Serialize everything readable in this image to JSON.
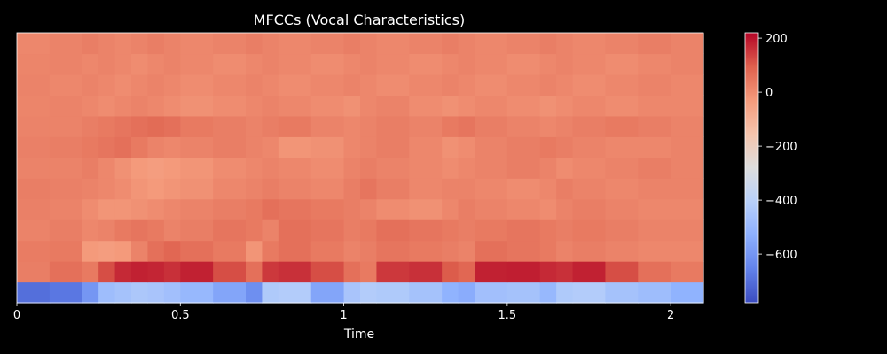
{
  "chart_data": {
    "type": "heatmap",
    "title": "MFCCs (Vocal Characteristics)",
    "xlabel": "Time",
    "ylabel": "",
    "xlim": [
      0,
      2.1
    ],
    "x_ticks": [
      {
        "value": 0,
        "label": "0"
      },
      {
        "value": 0.5,
        "label": "0.5"
      },
      {
        "value": 1,
        "label": "1"
      },
      {
        "value": 1.5,
        "label": "1.5"
      },
      {
        "value": 2,
        "label": "2"
      }
    ],
    "n_coefficients": 13,
    "colormap": "coolwarm",
    "colorbar": {
      "range": [
        -780,
        220
      ],
      "ticks": [
        {
          "value": 200,
          "label": "200"
        },
        {
          "value": 0,
          "label": "0"
        },
        {
          "value": -200,
          "label": "−200"
        },
        {
          "value": -400,
          "label": "−400"
        },
        {
          "value": -600,
          "label": "−600"
        }
      ]
    },
    "time_bins": [
      0.0,
      0.1,
      0.2,
      0.25,
      0.3,
      0.35,
      0.4,
      0.45,
      0.5,
      0.6,
      0.7,
      0.75,
      0.8,
      0.9,
      1.0,
      1.05,
      1.1,
      1.2,
      1.3,
      1.35,
      1.4,
      1.5,
      1.6,
      1.65,
      1.7,
      1.8,
      1.9,
      2.0,
      2.1
    ],
    "values": [
      [
        -700,
        -680,
        -600,
        -480,
        -460,
        -440,
        -450,
        -470,
        -500,
        -560,
        -620,
        -430,
        -420,
        -560,
        -450,
        -420,
        -430,
        -460,
        -520,
        -540,
        -470,
        -460,
        -500,
        -430,
        -420,
        -460,
        -480,
        -520
      ],
      [
        30,
        60,
        40,
        120,
        170,
        180,
        175,
        160,
        180,
        120,
        60,
        150,
        160,
        120,
        60,
        40,
        150,
        160,
        100,
        80,
        180,
        185,
        170,
        160,
        180,
        120,
        60,
        40
      ],
      [
        35,
        40,
        -30,
        -40,
        -30,
        20,
        60,
        80,
        60,
        40,
        -20,
        40,
        60,
        40,
        20,
        30,
        50,
        40,
        30,
        20,
        60,
        50,
        40,
        20,
        30,
        20,
        10,
        10
      ],
      [
        20,
        30,
        10,
        20,
        40,
        50,
        40,
        20,
        30,
        50,
        40,
        20,
        60,
        50,
        30,
        40,
        60,
        50,
        40,
        30,
        40,
        50,
        40,
        30,
        40,
        30,
        20,
        20
      ],
      [
        25,
        20,
        0,
        -20,
        -20,
        -10,
        0,
        10,
        20,
        30,
        40,
        60,
        50,
        40,
        30,
        20,
        0,
        -10,
        10,
        30,
        20,
        10,
        0,
        20,
        30,
        20,
        10,
        10
      ],
      [
        30,
        25,
        20,
        10,
        0,
        -20,
        -30,
        -20,
        -10,
        10,
        20,
        30,
        20,
        10,
        30,
        50,
        30,
        10,
        20,
        20,
        10,
        0,
        10,
        30,
        20,
        10,
        20,
        20
      ],
      [
        20,
        20,
        30,
        10,
        -10,
        -30,
        -40,
        -30,
        -20,
        0,
        10,
        20,
        10,
        0,
        20,
        30,
        20,
        10,
        0,
        10,
        20,
        30,
        20,
        0,
        10,
        20,
        30,
        20
      ],
      [
        25,
        30,
        40,
        50,
        60,
        40,
        20,
        10,
        20,
        30,
        20,
        10,
        -20,
        -10,
        10,
        20,
        30,
        10,
        -10,
        0,
        20,
        30,
        40,
        30,
        20,
        10,
        10,
        20
      ],
      [
        20,
        20,
        30,
        40,
        50,
        60,
        70,
        60,
        40,
        30,
        20,
        30,
        40,
        20,
        10,
        20,
        30,
        20,
        40,
        50,
        30,
        20,
        10,
        20,
        30,
        40,
        30,
        20
      ],
      [
        15,
        20,
        10,
        0,
        10,
        20,
        10,
        0,
        -10,
        0,
        10,
        20,
        10,
        0,
        -10,
        10,
        20,
        0,
        -10,
        0,
        10,
        0,
        -10,
        0,
        10,
        0,
        10,
        10
      ],
      [
        20,
        10,
        20,
        10,
        0,
        10,
        20,
        10,
        0,
        10,
        20,
        10,
        0,
        10,
        20,
        10,
        0,
        10,
        20,
        10,
        0,
        10,
        20,
        10,
        0,
        10,
        20,
        10
      ],
      [
        15,
        20,
        10,
        20,
        10,
        0,
        10,
        20,
        10,
        0,
        10,
        20,
        10,
        0,
        10,
        20,
        10,
        0,
        10,
        20,
        10,
        0,
        10,
        20,
        10,
        0,
        10,
        20
      ],
      [
        10,
        20,
        30,
        20,
        10,
        20,
        30,
        20,
        10,
        20,
        30,
        20,
        10,
        20,
        30,
        20,
        10,
        20,
        30,
        20,
        10,
        20,
        30,
        20,
        10,
        20,
        30,
        20
      ]
    ]
  }
}
